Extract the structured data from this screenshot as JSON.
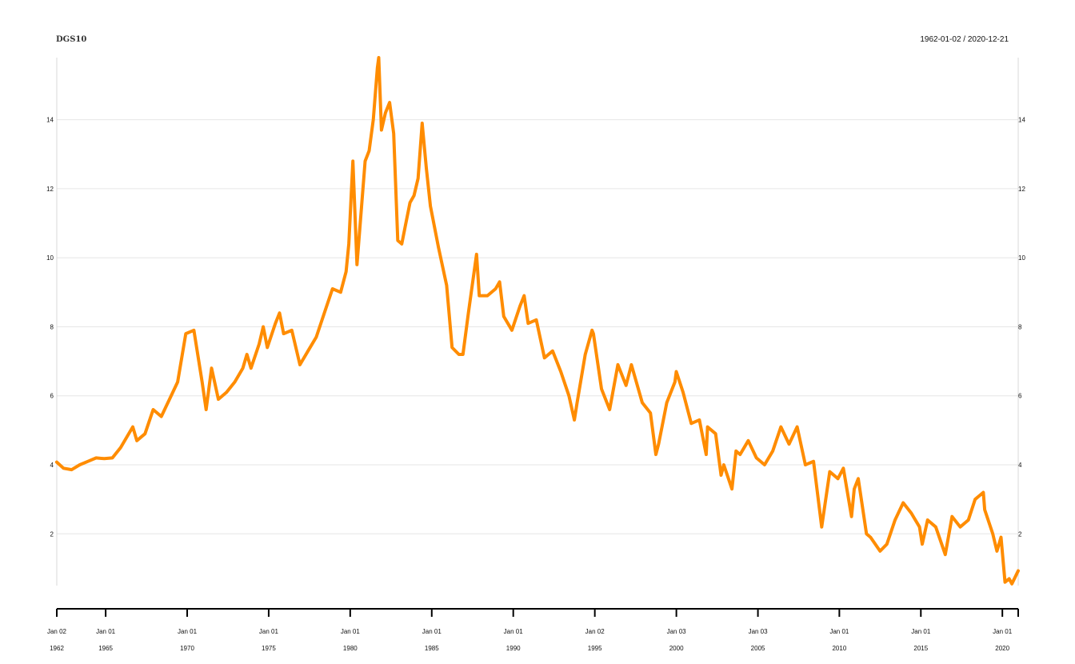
{
  "chart_data": {
    "type": "line",
    "title": "DGS10",
    "date_range": "1962-01-02 / 2020-12-21",
    "x_start": "1962-01-02",
    "x_end": "2020-12-21",
    "y_ticks": [
      "2",
      "4",
      "6",
      "8",
      "10",
      "12",
      "14"
    ],
    "ylim": [
      0.5,
      15.8
    ],
    "grid": true,
    "colors": {
      "line": "#ff8c00",
      "grid": "#e6e6e6",
      "axis": "#000000"
    },
    "x_ticks": [
      {
        "date": "1962-01-02",
        "label": "Jan 02",
        "year": "1962"
      },
      {
        "date": "1965-01-01",
        "label": "Jan 01",
        "year": "1965"
      },
      {
        "date": "1970-01-01",
        "label": "Jan 01",
        "year": "1970"
      },
      {
        "date": "1975-01-01",
        "label": "Jan 01",
        "year": "1975"
      },
      {
        "date": "1980-01-01",
        "label": "Jan 01",
        "year": "1980"
      },
      {
        "date": "1985-01-01",
        "label": "Jan 01",
        "year": "1985"
      },
      {
        "date": "1990-01-01",
        "label": "Jan 01",
        "year": "1990"
      },
      {
        "date": "1995-01-02",
        "label": "Jan 02",
        "year": "1995"
      },
      {
        "date": "2000-01-03",
        "label": "Jan 03",
        "year": "2000"
      },
      {
        "date": "2005-01-03",
        "label": "Jan 03",
        "year": "2005"
      },
      {
        "date": "2010-01-01",
        "label": "Jan 01",
        "year": "2010"
      },
      {
        "date": "2015-01-01",
        "label": "Jan 01",
        "year": "2015"
      },
      {
        "date": "2020-01-01",
        "label": "Jan 01",
        "year": "2020"
      }
    ],
    "series": [
      {
        "points": [
          [
            "1962-01",
            4.08
          ],
          [
            "1962-06",
            3.9
          ],
          [
            "1962-12",
            3.86
          ],
          [
            "1963-06",
            4.0
          ],
          [
            "1963-12",
            4.1
          ],
          [
            "1964-06",
            4.2
          ],
          [
            "1964-12",
            4.18
          ],
          [
            "1965-06",
            4.2
          ],
          [
            "1965-12",
            4.5
          ],
          [
            "1966-09",
            5.1
          ],
          [
            "1966-12",
            4.7
          ],
          [
            "1967-06",
            4.9
          ],
          [
            "1967-12",
            5.6
          ],
          [
            "1968-06",
            5.4
          ],
          [
            "1968-12",
            5.9
          ],
          [
            "1969-06",
            6.4
          ],
          [
            "1969-12",
            7.8
          ],
          [
            "1970-06",
            7.9
          ],
          [
            "1970-12",
            6.4
          ],
          [
            "1971-03",
            5.6
          ],
          [
            "1971-07",
            6.8
          ],
          [
            "1971-12",
            5.9
          ],
          [
            "1972-06",
            6.1
          ],
          [
            "1972-12",
            6.4
          ],
          [
            "1973-06",
            6.8
          ],
          [
            "1973-09",
            7.2
          ],
          [
            "1973-12",
            6.8
          ],
          [
            "1974-06",
            7.5
          ],
          [
            "1974-09",
            8.0
          ],
          [
            "1974-12",
            7.4
          ],
          [
            "1975-06",
            8.1
          ],
          [
            "1975-09",
            8.4
          ],
          [
            "1975-12",
            7.8
          ],
          [
            "1976-06",
            7.9
          ],
          [
            "1976-12",
            6.9
          ],
          [
            "1977-06",
            7.3
          ],
          [
            "1977-12",
            7.7
          ],
          [
            "1978-06",
            8.4
          ],
          [
            "1978-12",
            9.1
          ],
          [
            "1979-06",
            9.0
          ],
          [
            "1979-10",
            9.6
          ],
          [
            "1979-12",
            10.4
          ],
          [
            "1980-03",
            12.8
          ],
          [
            "1980-06",
            9.8
          ],
          [
            "1980-12",
            12.8
          ],
          [
            "1981-03",
            13.1
          ],
          [
            "1981-06",
            14.0
          ],
          [
            "1981-09",
            15.5
          ],
          [
            "1981-10",
            15.8
          ],
          [
            "1981-12",
            13.7
          ],
          [
            "1982-03",
            14.2
          ],
          [
            "1982-06",
            14.5
          ],
          [
            "1982-09",
            13.6
          ],
          [
            "1982-12",
            10.5
          ],
          [
            "1983-03",
            10.4
          ],
          [
            "1983-06",
            11.0
          ],
          [
            "1983-09",
            11.6
          ],
          [
            "1983-12",
            11.8
          ],
          [
            "1984-03",
            12.3
          ],
          [
            "1984-06",
            13.9
          ],
          [
            "1984-09",
            12.6
          ],
          [
            "1984-12",
            11.5
          ],
          [
            "1985-06",
            10.3
          ],
          [
            "1985-12",
            9.2
          ],
          [
            "1986-04",
            7.4
          ],
          [
            "1986-09",
            7.2
          ],
          [
            "1986-12",
            7.2
          ],
          [
            "1987-04",
            8.4
          ],
          [
            "1987-10",
            10.1
          ],
          [
            "1987-12",
            8.9
          ],
          [
            "1988-06",
            8.9
          ],
          [
            "1988-12",
            9.1
          ],
          [
            "1989-03",
            9.3
          ],
          [
            "1989-06",
            8.3
          ],
          [
            "1989-12",
            7.9
          ],
          [
            "1990-06",
            8.6
          ],
          [
            "1990-09",
            8.9
          ],
          [
            "1990-12",
            8.1
          ],
          [
            "1991-06",
            8.2
          ],
          [
            "1991-12",
            7.1
          ],
          [
            "1992-06",
            7.3
          ],
          [
            "1992-12",
            6.7
          ],
          [
            "1993-06",
            6.0
          ],
          [
            "1993-10",
            5.3
          ],
          [
            "1993-12",
            5.8
          ],
          [
            "1994-06",
            7.2
          ],
          [
            "1994-11",
            7.9
          ],
          [
            "1994-12",
            7.8
          ],
          [
            "1995-06",
            6.2
          ],
          [
            "1995-12",
            5.6
          ],
          [
            "1996-06",
            6.9
          ],
          [
            "1996-12",
            6.3
          ],
          [
            "1997-04",
            6.9
          ],
          [
            "1997-12",
            5.8
          ],
          [
            "1998-06",
            5.5
          ],
          [
            "1998-10",
            4.3
          ],
          [
            "1998-12",
            4.6
          ],
          [
            "1999-06",
            5.8
          ],
          [
            "1999-12",
            6.4
          ],
          [
            "2000-01",
            6.7
          ],
          [
            "2000-06",
            6.1
          ],
          [
            "2000-12",
            5.2
          ],
          [
            "2001-06",
            5.3
          ],
          [
            "2001-11",
            4.3
          ],
          [
            "2001-12",
            5.1
          ],
          [
            "2002-06",
            4.9
          ],
          [
            "2002-10",
            3.7
          ],
          [
            "2002-12",
            4.0
          ],
          [
            "2003-06",
            3.3
          ],
          [
            "2003-09",
            4.4
          ],
          [
            "2003-12",
            4.3
          ],
          [
            "2004-06",
            4.7
          ],
          [
            "2004-12",
            4.2
          ],
          [
            "2005-06",
            4.0
          ],
          [
            "2005-12",
            4.4
          ],
          [
            "2006-06",
            5.1
          ],
          [
            "2006-12",
            4.6
          ],
          [
            "2007-06",
            5.1
          ],
          [
            "2007-12",
            4.0
          ],
          [
            "2008-06",
            4.1
          ],
          [
            "2008-12",
            2.2
          ],
          [
            "2009-06",
            3.8
          ],
          [
            "2009-12",
            3.6
          ],
          [
            "2010-04",
            3.9
          ],
          [
            "2010-10",
            2.5
          ],
          [
            "2010-12",
            3.3
          ],
          [
            "2011-03",
            3.6
          ],
          [
            "2011-09",
            2.0
          ],
          [
            "2011-12",
            1.9
          ],
          [
            "2012-07",
            1.5
          ],
          [
            "2012-12",
            1.7
          ],
          [
            "2013-06",
            2.4
          ],
          [
            "2013-12",
            2.9
          ],
          [
            "2014-06",
            2.6
          ],
          [
            "2014-12",
            2.2
          ],
          [
            "2015-02",
            1.7
          ],
          [
            "2015-06",
            2.4
          ],
          [
            "2015-12",
            2.2
          ],
          [
            "2016-07",
            1.4
          ],
          [
            "2016-12",
            2.5
          ],
          [
            "2017-06",
            2.2
          ],
          [
            "2017-12",
            2.4
          ],
          [
            "2018-05",
            3.0
          ],
          [
            "2018-11",
            3.2
          ],
          [
            "2018-12",
            2.7
          ],
          [
            "2019-06",
            2.0
          ],
          [
            "2019-09",
            1.5
          ],
          [
            "2019-12",
            1.9
          ],
          [
            "2020-03",
            0.6
          ],
          [
            "2020-06",
            0.7
          ],
          [
            "2020-08",
            0.55
          ],
          [
            "2020-12-21",
            0.93
          ]
        ]
      }
    ]
  }
}
